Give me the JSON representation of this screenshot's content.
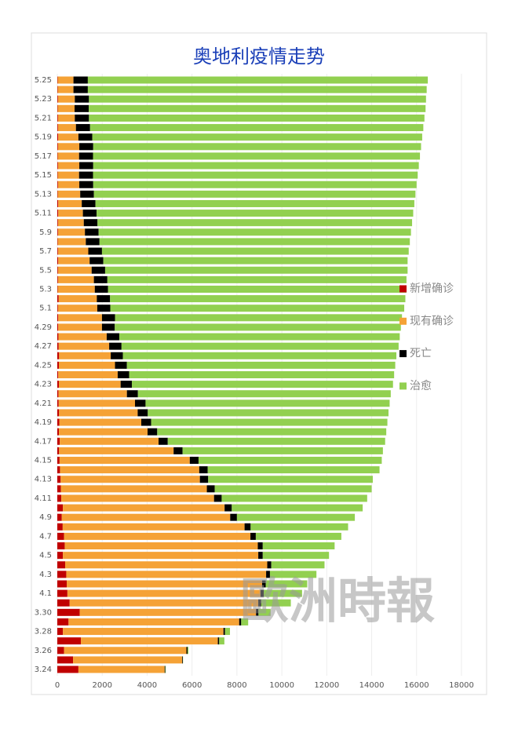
{
  "chart_data": {
    "type": "stacked-bar-horizontal",
    "title": "奥地利疫情走势",
    "watermark": "歐洲時報",
    "categories": [
      "3.24",
      null,
      "3.26",
      null,
      "3.28",
      null,
      "3.30",
      null,
      "4.1",
      null,
      "4.3",
      null,
      "4.5",
      null,
      "4.7",
      null,
      "4.9",
      null,
      "4.11",
      null,
      "4.13",
      null,
      "4.15",
      null,
      "4.17",
      null,
      "4.19",
      null,
      "4.21",
      null,
      "4.23",
      null,
      "4.25",
      null,
      "4.27",
      null,
      "4.29",
      null,
      "5.1",
      null,
      "5.3",
      null,
      "5.5",
      null,
      "5.7",
      null,
      "5.9",
      null,
      "5.11",
      null,
      "5.13",
      null,
      "5.15",
      null,
      "5.17",
      null,
      "5.19",
      null,
      "5.21",
      null,
      "5.23",
      null,
      "5.25"
    ],
    "series": [
      {
        "name": "新增确诊",
        "color": "#c00000",
        "values": [
          940,
          700,
          300,
          1050,
          250,
          500,
          1000,
          550,
          450,
          420,
          400,
          350,
          250,
          330,
          300,
          240,
          200,
          250,
          180,
          160,
          150,
          120,
          100,
          80,
          110,
          70,
          90,
          80,
          60,
          50,
          70,
          40,
          70,
          80,
          60,
          50,
          40,
          40,
          30,
          60,
          20,
          30,
          30,
          40,
          30,
          20,
          30,
          30,
          40,
          40,
          20,
          30,
          20,
          30,
          20,
          30,
          40,
          30,
          30,
          20,
          30,
          20,
          20
        ]
      },
      {
        "name": "现有确诊",
        "color": "#f5a236",
        "values": [
          3840,
          4860,
          5450,
          6100,
          7150,
          7600,
          7850,
          8400,
          8600,
          8700,
          8900,
          9000,
          8700,
          8600,
          8300,
          8100,
          7500,
          7200,
          6800,
          6500,
          6200,
          6200,
          5800,
          5100,
          4400,
          3950,
          3650,
          3500,
          3400,
          3050,
          2750,
          2650,
          2500,
          2300,
          2250,
          2150,
          1950,
          1950,
          1750,
          1700,
          1650,
          1600,
          1500,
          1400,
          1350,
          1250,
          1200,
          1150,
          1100,
          1050,
          1000,
          950,
          950,
          950,
          950,
          950,
          900,
          800,
          750,
          750,
          750,
          700,
          700
        ]
      },
      {
        "name": "死亡",
        "color": "#000000",
        "values": [
          30,
          30,
          50,
          60,
          70,
          90,
          110,
          130,
          150,
          160,
          170,
          180,
          200,
          220,
          240,
          270,
          300,
          320,
          340,
          350,
          370,
          380,
          390,
          400,
          410,
          430,
          440,
          450,
          470,
          490,
          500,
          510,
          530,
          540,
          550,
          560,
          570,
          580,
          580,
          590,
          590,
          600,
          600,
          610,
          610,
          610,
          610,
          610,
          610,
          610,
          610,
          620,
          620,
          620,
          620,
          620,
          620,
          630,
          630,
          630,
          630,
          640,
          640
        ]
      },
      {
        "name": "治愈",
        "color": "#92d050",
        "values": [
          20,
          10,
          40,
          230,
          220,
          310,
          540,
          1320,
          1700,
          1850,
          2070,
          2370,
          2950,
          3200,
          3810,
          4340,
          5250,
          5830,
          6480,
          6990,
          7330,
          7650,
          8160,
          8920,
          9680,
          10200,
          10520,
          10720,
          10870,
          11260,
          11630,
          11800,
          11950,
          12180,
          12340,
          12490,
          12740,
          12780,
          13090,
          13150,
          13290,
          13320,
          13470,
          13550,
          13660,
          13820,
          13910,
          14010,
          14100,
          14200,
          14320,
          14400,
          14460,
          14500,
          14560,
          14600,
          14690,
          14840,
          14940,
          15000,
          15010,
          15090,
          15140
        ]
      }
    ],
    "xlim": [
      0,
      18000
    ],
    "xticks": [
      0,
      2000,
      4000,
      6000,
      8000,
      10000,
      12000,
      14000,
      16000,
      18000
    ],
    "grid": true,
    "legend": "right"
  }
}
